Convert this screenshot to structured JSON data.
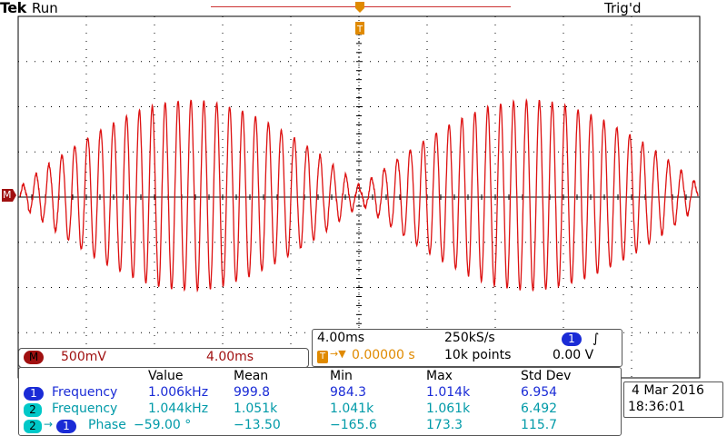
{
  "header": {
    "brand": "Tek",
    "run_state": "Run",
    "trigger_state": "Trig'd",
    "trigger_marker_label": "T"
  },
  "markers": {
    "math_label": "M"
  },
  "math_readout": {
    "badge": "M",
    "scale": "500mV",
    "timebase": "4.00ms"
  },
  "acq_panel": {
    "timebase": "4.00ms",
    "sample_rate": "250kS/s",
    "channel_badge": "1",
    "trigger_position_badge": "T",
    "trigger_position": "0.00000 s",
    "record_length": "10k points",
    "trigger_level": "0.00 V"
  },
  "measurements": {
    "headers": [
      "Value",
      "Mean",
      "Min",
      "Max",
      "Std Dev"
    ],
    "rows": [
      {
        "badge": "1",
        "name": "Frequency",
        "values": [
          "1.006kHz",
          "999.8",
          "984.3",
          "1.014k",
          "6.954"
        ]
      },
      {
        "badge": "2",
        "name": "Frequency",
        "values": [
          "1.044kHz",
          "1.051k",
          "1.041k",
          "1.061k",
          "6.492"
        ]
      },
      {
        "badge": "2",
        "badge2": "1",
        "name": "Phase",
        "values": [
          "−59.00 °",
          "−13.50",
          "−165.6",
          "173.3",
          "115.7"
        ]
      }
    ]
  },
  "datetime": {
    "date": "4 Mar  2016",
    "time": "18:36:01"
  },
  "colors": {
    "trace": "#dd1111",
    "grid": "#000000",
    "ch1": "#1a2bd6",
    "ch2": "#00c8c8",
    "math": "#a01010",
    "trigger": "#e08a00"
  }
}
